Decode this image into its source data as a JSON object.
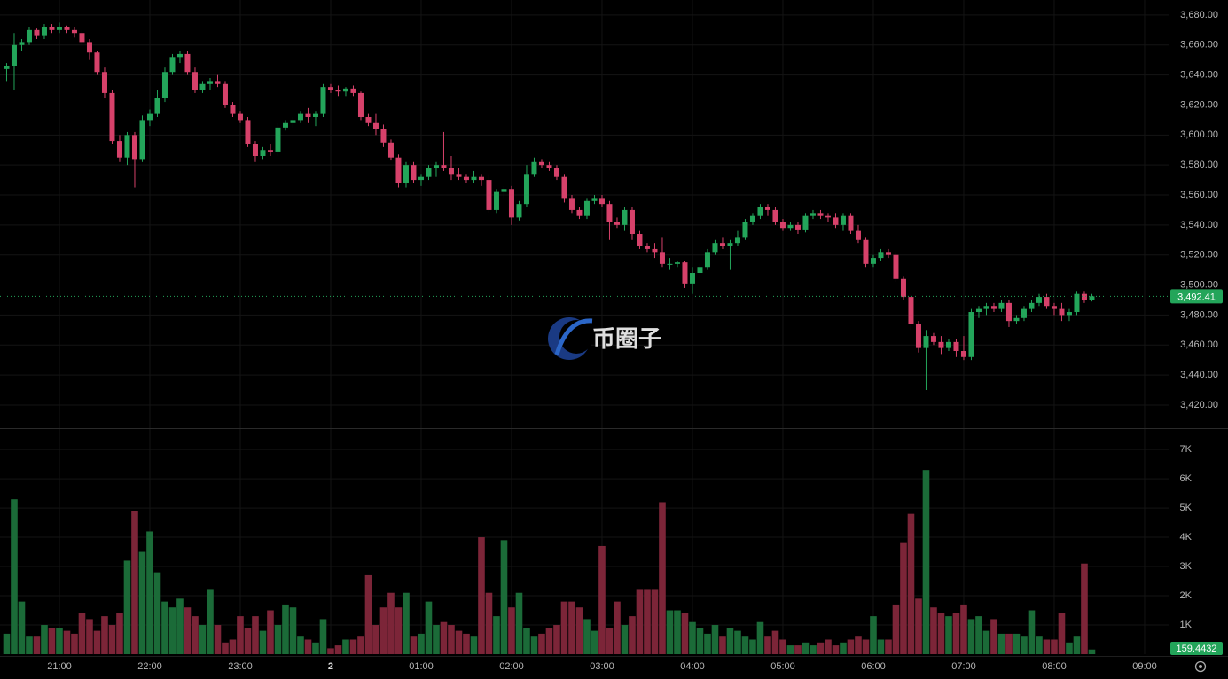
{
  "chart_data": {
    "type": "candlestick",
    "watermark": "币圈子",
    "up_color": "#23a55a",
    "down_color": "#d6416a",
    "volume_up_color": "#1b6b38",
    "volume_down_color": "#7c2538",
    "grid": true,
    "xlim": [
      1220.6,
      1995.9
    ],
    "xticks": [
      {
        "value": 1260,
        "label": "21:00"
      },
      {
        "value": 1320,
        "label": "22:00"
      },
      {
        "value": 1380,
        "label": "23:00"
      },
      {
        "value": 1440,
        "label": "2"
      },
      {
        "value": 1500,
        "label": "01:00"
      },
      {
        "value": 1560,
        "label": "02:00"
      },
      {
        "value": 1620,
        "label": "03:00"
      },
      {
        "value": 1680,
        "label": "04:00"
      },
      {
        "value": 1740,
        "label": "05:00"
      },
      {
        "value": 1800,
        "label": "06:00"
      },
      {
        "value": 1860,
        "label": "07:00"
      },
      {
        "value": 1920,
        "label": "08:00"
      },
      {
        "value": 1980,
        "label": "09:00"
      }
    ],
    "ylim": [
      3404.6,
      3690.0
    ],
    "yticks": [
      {
        "value": 3420,
        "label": "3,420.00"
      },
      {
        "value": 3440,
        "label": "3,440.00"
      },
      {
        "value": 3460,
        "label": "3,460.00"
      },
      {
        "value": 3480,
        "label": "3,480.00"
      },
      {
        "value": 3500,
        "label": "3,500.00"
      },
      {
        "value": 3520,
        "label": "3,520.00"
      },
      {
        "value": 3540,
        "label": "3,540.00"
      },
      {
        "value": 3560,
        "label": "3,560.00"
      },
      {
        "value": 3580,
        "label": "3,580.00"
      },
      {
        "value": 3600,
        "label": "3,600.00"
      },
      {
        "value": 3620,
        "label": "3,620.00"
      },
      {
        "value": 3640,
        "label": "3,640.00"
      },
      {
        "value": 3660,
        "label": "3,660.00"
      },
      {
        "value": 3680,
        "label": "3,680.00"
      }
    ],
    "volume_ylim": [
      0,
      7.7
    ],
    "volume_ticks": [
      {
        "value": 1,
        "label": "1K"
      },
      {
        "value": 2,
        "label": "2K"
      },
      {
        "value": 3,
        "label": "3K"
      },
      {
        "value": 4,
        "label": "4K"
      },
      {
        "value": 5,
        "label": "5K"
      },
      {
        "value": 6,
        "label": "6K"
      },
      {
        "value": 7,
        "label": "7K"
      }
    ],
    "current_price": {
      "value": 3492.41,
      "label": "3,492.41"
    },
    "current_volume": {
      "value": 0.1594432,
      "label": "159.4432"
    },
    "x": [
      1225,
      1230,
      1235,
      1240,
      1245,
      1250,
      1255,
      1260,
      1265,
      1270,
      1275,
      1280,
      1285,
      1290,
      1295,
      1300,
      1305,
      1310,
      1315,
      1320,
      1325,
      1330,
      1335,
      1340,
      1345,
      1350,
      1355,
      1360,
      1365,
      1370,
      1375,
      1380,
      1385,
      1390,
      1395,
      1400,
      1405,
      1410,
      1415,
      1420,
      1425,
      1430,
      1435,
      1440,
      1445,
      1450,
      1455,
      1460,
      1465,
      1470,
      1475,
      1480,
      1485,
      1490,
      1495,
      1500,
      1505,
      1510,
      1515,
      1520,
      1525,
      1530,
      1535,
      1540,
      1545,
      1550,
      1555,
      1560,
      1565,
      1570,
      1575,
      1580,
      1585,
      1590,
      1595,
      1600,
      1605,
      1610,
      1615,
      1620,
      1625,
      1630,
      1635,
      1640,
      1645,
      1650,
      1655,
      1660,
      1665,
      1670,
      1675,
      1680,
      1685,
      1690,
      1695,
      1700,
      1705,
      1710,
      1715,
      1720,
      1725,
      1730,
      1735,
      1740,
      1745,
      1750,
      1755,
      1760,
      1765,
      1770,
      1775,
      1780,
      1785,
      1790,
      1795,
      1800,
      1805,
      1810,
      1815,
      1820,
      1825,
      1830,
      1835,
      1840,
      1845,
      1850,
      1855,
      1860,
      1865,
      1870,
      1875,
      1880,
      1885,
      1890,
      1895,
      1900,
      1905,
      1910,
      1915,
      1920,
      1925,
      1930,
      1935,
      1940,
      1945
    ],
    "open": [
      3644,
      3646,
      3660,
      3662,
      3670,
      3666,
      3672,
      3670,
      3672,
      3670,
      3668,
      3662,
      3655,
      3642,
      3628,
      3596,
      3585,
      3600,
      3584,
      3610,
      3614,
      3625,
      3642,
      3652,
      3654,
      3642,
      3630,
      3634,
      3636,
      3634,
      3620,
      3614,
      3610,
      3594,
      3586,
      3590,
      3589,
      3605,
      3608,
      3610,
      3614,
      3612,
      3614,
      3632,
      3630,
      3629,
      3631,
      3628,
      3612,
      3608,
      3604,
      3595,
      3585,
      3568,
      3580,
      3570,
      3572,
      3578,
      3580,
      3578,
      3574,
      3572,
      3570,
      3572,
      3570,
      3550,
      3562,
      3564,
      3545,
      3554,
      3574,
      3582,
      3580,
      3578,
      3572,
      3558,
      3550,
      3546,
      3556,
      3558,
      3554,
      3542,
      3540,
      3550,
      3534,
      3526,
      3524,
      3522,
      3514,
      3514,
      3515,
      3501,
      3508,
      3512,
      3522,
      3528,
      3526,
      3528,
      3532,
      3542,
      3546,
      3552,
      3550,
      3542,
      3538,
      3540,
      3537,
      3546,
      3548,
      3546,
      3545,
      3540,
      3546,
      3536,
      3530,
      3514,
      3518,
      3522,
      3520,
      3504,
      3492,
      3474,
      3458,
      3466,
      3462,
      3458,
      3462,
      3456,
      3452,
      3482,
      3484,
      3486,
      3484,
      3488,
      3476,
      3478,
      3484,
      3488,
      3492,
      3486,
      3484,
      3480,
      3482,
      3494,
      3490
    ],
    "high": [
      3648,
      3668,
      3664,
      3672,
      3671,
      3674,
      3674,
      3675,
      3673,
      3672,
      3670,
      3664,
      3656,
      3645,
      3630,
      3600,
      3602,
      3602,
      3613,
      3617,
      3630,
      3645,
      3654,
      3656,
      3656,
      3645,
      3636,
      3638,
      3640,
      3636,
      3622,
      3616,
      3612,
      3596,
      3592,
      3594,
      3608,
      3610,
      3612,
      3616,
      3618,
      3616,
      3634,
      3634,
      3633,
      3632,
      3633,
      3629,
      3614,
      3614,
      3607,
      3597,
      3587,
      3582,
      3582,
      3574,
      3580,
      3582,
      3602,
      3586,
      3578,
      3574,
      3576,
      3574,
      3574,
      3564,
      3566,
      3566,
      3556,
      3580,
      3585,
      3584,
      3582,
      3580,
      3574,
      3560,
      3552,
      3558,
      3560,
      3560,
      3556,
      3545,
      3552,
      3552,
      3536,
      3528,
      3528,
      3532,
      3518,
      3516,
      3516,
      3512,
      3514,
      3524,
      3530,
      3532,
      3530,
      3536,
      3544,
      3548,
      3554,
      3554,
      3552,
      3544,
      3542,
      3542,
      3548,
      3550,
      3550,
      3548,
      3548,
      3548,
      3548,
      3540,
      3532,
      3520,
      3524,
      3524,
      3522,
      3506,
      3494,
      3476,
      3470,
      3468,
      3466,
      3464,
      3464,
      3466,
      3484,
      3486,
      3488,
      3488,
      3490,
      3490,
      3480,
      3486,
      3490,
      3494,
      3494,
      3488,
      3488,
      3484,
      3496,
      3496,
      3494
    ],
    "low": [
      3636,
      3630,
      3656,
      3660,
      3664,
      3664,
      3668,
      3668,
      3668,
      3665,
      3660,
      3650,
      3640,
      3625,
      3594,
      3582,
      3580,
      3565,
      3582,
      3606,
      3612,
      3622,
      3640,
      3648,
      3640,
      3628,
      3628,
      3630,
      3632,
      3618,
      3612,
      3608,
      3592,
      3582,
      3584,
      3586,
      3586,
      3603,
      3605,
      3608,
      3608,
      3606,
      3612,
      3628,
      3626,
      3626,
      3626,
      3610,
      3606,
      3600,
      3592,
      3583,
      3565,
      3565,
      3568,
      3566,
      3570,
      3572,
      3576,
      3570,
      3570,
      3568,
      3568,
      3566,
      3548,
      3548,
      3558,
      3540,
      3543,
      3552,
      3572,
      3578,
      3576,
      3570,
      3555,
      3548,
      3544,
      3544,
      3554,
      3552,
      3530,
      3538,
      3536,
      3530,
      3524,
      3522,
      3518,
      3512,
      3510,
      3512,
      3498,
      3494,
      3504,
      3510,
      3520,
      3524,
      3510,
      3526,
      3530,
      3540,
      3544,
      3546,
      3540,
      3536,
      3536,
      3534,
      3535,
      3544,
      3544,
      3542,
      3538,
      3536,
      3534,
      3528,
      3512,
      3512,
      3516,
      3518,
      3502,
      3490,
      3470,
      3455,
      3430,
      3460,
      3454,
      3456,
      3452,
      3450,
      3450,
      3478,
      3480,
      3482,
      3482,
      3472,
      3474,
      3476,
      3482,
      3486,
      3484,
      3480,
      3476,
      3476,
      3480,
      3488,
      3489
    ],
    "close": [
      3646,
      3660,
      3662,
      3670,
      3666,
      3672,
      3670,
      3672,
      3670,
      3668,
      3662,
      3655,
      3642,
      3628,
      3596,
      3585,
      3600,
      3584,
      3610,
      3614,
      3625,
      3642,
      3652,
      3654,
      3642,
      3630,
      3634,
      3636,
      3634,
      3620,
      3614,
      3610,
      3594,
      3586,
      3590,
      3589,
      3605,
      3608,
      3610,
      3614,
      3612,
      3614,
      3632,
      3630,
      3629,
      3631,
      3628,
      3612,
      3608,
      3604,
      3595,
      3585,
      3568,
      3580,
      3570,
      3572,
      3578,
      3580,
      3578,
      3574,
      3572,
      3570,
      3572,
      3570,
      3550,
      3562,
      3564,
      3545,
      3554,
      3574,
      3582,
      3580,
      3578,
      3572,
      3558,
      3550,
      3546,
      3556,
      3558,
      3554,
      3542,
      3540,
      3550,
      3534,
      3526,
      3524,
      3522,
      3514,
      3514,
      3515,
      3501,
      3508,
      3512,
      3522,
      3528,
      3526,
      3528,
      3532,
      3542,
      3546,
      3552,
      3550,
      3542,
      3538,
      3540,
      3537,
      3546,
      3548,
      3546,
      3545,
      3540,
      3546,
      3536,
      3530,
      3514,
      3518,
      3522,
      3520,
      3504,
      3492,
      3474,
      3458,
      3466,
      3462,
      3458,
      3462,
      3456,
      3452,
      3482,
      3484,
      3486,
      3484,
      3488,
      3476,
      3478,
      3484,
      3488,
      3492,
      3486,
      3484,
      3480,
      3482,
      3494,
      3490,
      3492.41
    ],
    "volume": [
      0.7,
      5.3,
      1.8,
      0.6,
      0.6,
      1.0,
      0.9,
      0.9,
      0.8,
      0.7,
      1.4,
      1.2,
      0.8,
      1.3,
      1.0,
      1.4,
      3.2,
      4.9,
      3.5,
      4.2,
      2.8,
      1.8,
      1.6,
      1.9,
      1.6,
      1.3,
      1.0,
      2.2,
      1.0,
      0.4,
      0.5,
      1.3,
      0.9,
      1.3,
      0.8,
      1.5,
      1.0,
      1.7,
      1.6,
      0.6,
      0.5,
      0.4,
      1.2,
      0.2,
      0.3,
      0.5,
      0.5,
      0.6,
      2.7,
      1.0,
      1.6,
      2.1,
      1.6,
      2.1,
      0.6,
      0.7,
      1.8,
      1.0,
      1.1,
      1.0,
      0.8,
      0.7,
      0.6,
      4.0,
      2.1,
      1.3,
      3.9,
      1.6,
      2.1,
      0.9,
      0.6,
      0.7,
      0.9,
      1.0,
      1.8,
      1.8,
      1.6,
      1.2,
      0.8,
      3.7,
      0.9,
      1.8,
      1.0,
      1.3,
      2.2,
      2.2,
      2.2,
      5.2,
      1.5,
      1.5,
      1.4,
      1.1,
      0.9,
      0.7,
      1.0,
      0.6,
      0.9,
      0.8,
      0.6,
      0.5,
      1.1,
      0.6,
      0.8,
      0.5,
      0.3,
      0.3,
      0.4,
      0.3,
      0.4,
      0.5,
      0.3,
      0.4,
      0.5,
      0.6,
      0.5,
      1.3,
      0.5,
      0.5,
      1.7,
      3.8,
      4.8,
      1.9,
      6.3,
      1.6,
      1.4,
      1.3,
      1.4,
      1.7,
      1.2,
      1.3,
      0.8,
      1.2,
      0.7,
      0.7,
      0.7,
      0.6,
      1.5,
      0.6,
      0.5,
      0.5,
      1.4,
      0.4,
      0.6,
      3.1,
      0.1594432
    ]
  }
}
